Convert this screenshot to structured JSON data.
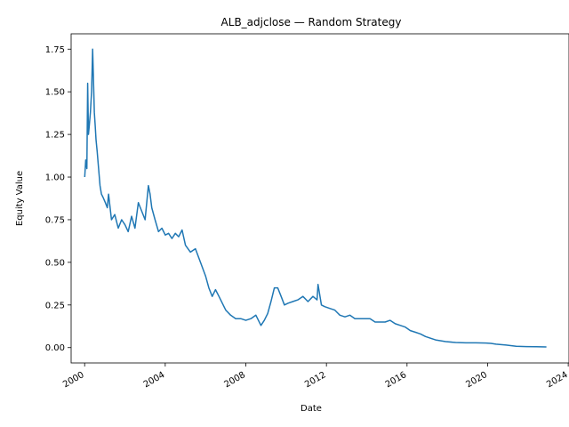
{
  "chart_data": {
    "type": "line",
    "title": "ALB_adjclose — Random Strategy",
    "xlabel": "Date",
    "ylabel": "Equity Value",
    "xlim": [
      "1999-05-01",
      "2024-01-15"
    ],
    "ylim": [
      -0.09,
      1.84
    ],
    "grid": false,
    "x_ticks": [
      "2000",
      "2004",
      "2008",
      "2012",
      "2016",
      "2020",
      "2024"
    ],
    "y_ticks": [
      "0.00",
      "0.25",
      "0.50",
      "0.75",
      "1.00",
      "1.25",
      "1.50",
      "1.75"
    ],
    "line_color": "#1f77b4",
    "series": [
      {
        "x": [
          "2000-01-03",
          "2000-01-20",
          "2000-02-10",
          "2000-02-25",
          "2000-03-10",
          "2000-03-25",
          "2000-04-15",
          "2000-05-05",
          "2000-05-25",
          "2000-06-15",
          "2000-06-25",
          "2000-07-10",
          "2000-07-25",
          "2000-08-15",
          "2000-09-10",
          "2000-10-05",
          "2000-11-01",
          "2000-12-01",
          "2001-01-10",
          "2001-02-15",
          "2001-03-10",
          "2001-05-01",
          "2001-07-01",
          "2001-09-01",
          "2001-11-01",
          "2002-01-01",
          "2002-03-01",
          "2002-05-01",
          "2002-07-01",
          "2002-09-01",
          "2002-11-01",
          "2003-01-01",
          "2003-03-01",
          "2003-04-01",
          "2003-05-01",
          "2003-07-01",
          "2003-09-01",
          "2003-11-01",
          "2004-01-01",
          "2004-03-01",
          "2004-05-01",
          "2004-07-01",
          "2004-09-01",
          "2004-11-01",
          "2005-01-01",
          "2005-04-01",
          "2005-07-01",
          "2005-10-01",
          "2006-01-01",
          "2006-03-01",
          "2006-05-01",
          "2006-07-01",
          "2006-09-01",
          "2006-11-01",
          "2007-01-01",
          "2007-04-01",
          "2007-07-01",
          "2007-10-01",
          "2008-01-01",
          "2008-04-01",
          "2008-07-01",
          "2008-10-01",
          "2008-12-01",
          "2009-02-01",
          "2009-04-01",
          "2009-06-01",
          "2009-08-01",
          "2009-10-01",
          "2009-12-01",
          "2010-02-01",
          "2010-05-01",
          "2010-08-01",
          "2010-11-01",
          "2011-02-01",
          "2011-05-01",
          "2011-07-15",
          "2011-08-01",
          "2011-10-01",
          "2011-12-01",
          "2012-03-01",
          "2012-06-01",
          "2012-09-01",
          "2012-12-01",
          "2013-03-01",
          "2013-06-01",
          "2013-09-01",
          "2013-12-01",
          "2014-03-01",
          "2014-06-01",
          "2014-09-01",
          "2014-12-01",
          "2015-03-01",
          "2015-06-01",
          "2015-09-01",
          "2015-12-01",
          "2016-03-01",
          "2016-06-01",
          "2016-09-01",
          "2016-12-01",
          "2017-06-01",
          "2017-12-01",
          "2018-06-01",
          "2018-12-01",
          "2019-06-01",
          "2019-12-01",
          "2020-03-01",
          "2020-06-01",
          "2020-12-01",
          "2021-06-01",
          "2021-12-01",
          "2022-06-01",
          "2022-12-01"
        ],
        "y": [
          1.0,
          1.1,
          1.05,
          1.55,
          1.25,
          1.3,
          1.38,
          1.5,
          1.75,
          1.5,
          1.38,
          1.3,
          1.22,
          1.15,
          1.05,
          0.95,
          0.9,
          0.88,
          0.85,
          0.82,
          0.9,
          0.75,
          0.78,
          0.7,
          0.75,
          0.72,
          0.68,
          0.77,
          0.7,
          0.85,
          0.8,
          0.75,
          0.95,
          0.9,
          0.82,
          0.75,
          0.68,
          0.7,
          0.66,
          0.67,
          0.64,
          0.67,
          0.65,
          0.69,
          0.6,
          0.56,
          0.58,
          0.5,
          0.42,
          0.35,
          0.3,
          0.34,
          0.3,
          0.26,
          0.22,
          0.19,
          0.17,
          0.17,
          0.16,
          0.17,
          0.19,
          0.13,
          0.16,
          0.2,
          0.27,
          0.35,
          0.35,
          0.3,
          0.25,
          0.26,
          0.27,
          0.28,
          0.3,
          0.27,
          0.3,
          0.28,
          0.37,
          0.25,
          0.24,
          0.23,
          0.22,
          0.19,
          0.18,
          0.19,
          0.17,
          0.17,
          0.17,
          0.17,
          0.15,
          0.15,
          0.15,
          0.16,
          0.14,
          0.13,
          0.12,
          0.1,
          0.09,
          0.08,
          0.065,
          0.045,
          0.035,
          0.03,
          0.028,
          0.028,
          0.027,
          0.025,
          0.02,
          0.015,
          0.008,
          0.006,
          0.005,
          0.004
        ]
      }
    ]
  }
}
